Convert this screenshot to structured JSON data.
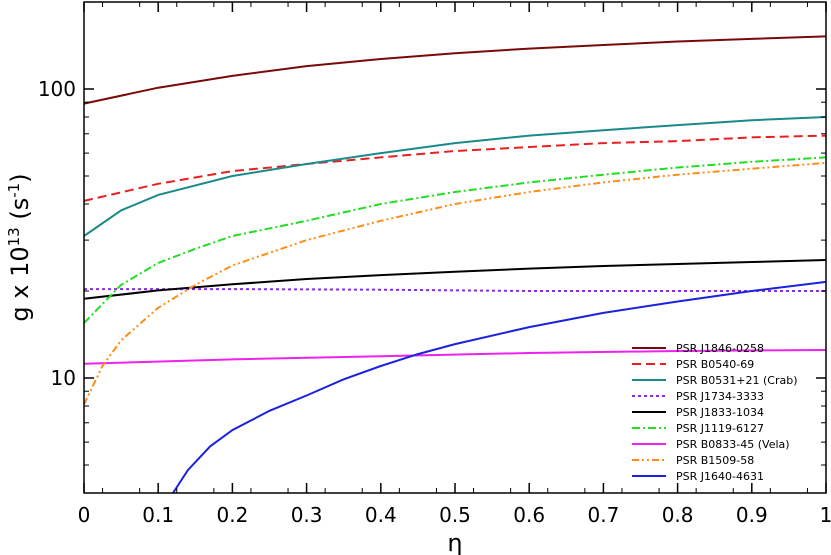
{
  "chart_data": {
    "type": "line",
    "xlabel": "η",
    "ylabel": {
      "base": "g x 10",
      "exponent": "13",
      "unit_open": " (s",
      "unit_exponent": "-1",
      "unit_close": ")"
    },
    "x_scale": "linear",
    "y_scale": "log",
    "xlim": [
      0,
      1
    ],
    "ylim": [
      4,
      200
    ],
    "x_ticks": [
      0,
      0.1,
      0.2,
      0.3,
      0.4,
      0.5,
      0.6,
      0.7,
      0.8,
      0.9,
      1
    ],
    "x_tick_labels": [
      "0",
      "0.1",
      "0.2",
      "0.3",
      "0.4",
      "0.5",
      "0.6",
      "0.7",
      "0.8",
      "0.9",
      "1"
    ],
    "y_major_ticks": [
      10,
      100
    ],
    "y_tick_labels": [
      "10",
      "100"
    ],
    "grid": false,
    "legend_position": "bottom-right",
    "series": [
      {
        "name": "PSR J1846-0258",
        "color": "#7a0a0a",
        "dash": "solid",
        "x": [
          0,
          0.1,
          0.2,
          0.3,
          0.4,
          0.5,
          0.6,
          0.7,
          0.8,
          0.9,
          1
        ],
        "y": [
          89,
          101,
          111,
          120,
          127,
          133,
          138,
          142,
          146,
          149,
          152
        ]
      },
      {
        "name": "PSR B0540-69",
        "color": "#e82020",
        "dash": "dashed",
        "x": [
          0,
          0.1,
          0.2,
          0.3,
          0.4,
          0.5,
          0.6,
          0.7,
          0.8,
          0.9,
          1
        ],
        "y": [
          41,
          47,
          52,
          55,
          58,
          61,
          63,
          65,
          66,
          68,
          69
        ]
      },
      {
        "name": "PSR B0531+21 (Crab)",
        "color": "#1a8a8a",
        "dash": "solid",
        "x": [
          0,
          0.05,
          0.1,
          0.2,
          0.3,
          0.4,
          0.5,
          0.6,
          0.7,
          0.8,
          0.9,
          1
        ],
        "y": [
          31,
          38,
          43,
          50,
          55,
          60,
          65,
          69,
          72,
          75,
          78,
          80
        ]
      },
      {
        "name": "PSR J1734-3333",
        "color": "#8a2be2",
        "dash": "dotted",
        "x": [
          0,
          0.2,
          0.4,
          0.6,
          0.8,
          1
        ],
        "y": [
          20.3,
          20.3,
          20.2,
          20.0,
          20.0,
          20.0
        ]
      },
      {
        "name": "PSR J1833-1034",
        "color": "#000000",
        "dash": "solid",
        "x": [
          0,
          0.1,
          0.2,
          0.3,
          0.4,
          0.5,
          0.6,
          0.7,
          0.8,
          0.9,
          1
        ],
        "y": [
          18.8,
          20.1,
          21.1,
          22.0,
          22.7,
          23.3,
          23.9,
          24.4,
          24.8,
          25.2,
          25.6
        ]
      },
      {
        "name": "PSR J1119-6127",
        "color": "#22dd22",
        "dash": "dashdot",
        "x": [
          0,
          0.05,
          0.1,
          0.15,
          0.2,
          0.3,
          0.4,
          0.5,
          0.6,
          0.7,
          0.8,
          0.9,
          1
        ],
        "y": [
          15.5,
          21,
          25,
          28,
          31,
          35,
          40,
          44,
          47.5,
          50.5,
          53.5,
          56,
          58
        ]
      },
      {
        "name": "PSR B0833-45 (Vela)",
        "color": "#ee22ee",
        "dash": "solid",
        "x": [
          0,
          0.2,
          0.4,
          0.6,
          0.8,
          1
        ],
        "y": [
          11.2,
          11.6,
          11.9,
          12.2,
          12.4,
          12.5
        ]
      },
      {
        "name": "PSR B1509-58",
        "color": "#ff8c1a",
        "dash": "dashdotdot",
        "x": [
          0,
          0.025,
          0.05,
          0.1,
          0.15,
          0.2,
          0.3,
          0.4,
          0.5,
          0.6,
          0.7,
          0.8,
          0.9,
          1
        ],
        "y": [
          8.1,
          11,
          13.5,
          17.5,
          21,
          24.5,
          30,
          35,
          40,
          44,
          47.5,
          50.5,
          53,
          55.5
        ]
      },
      {
        "name": "PSR J1640-4631",
        "color": "#1a22dd",
        "dash": "solid",
        "x": [
          0.12,
          0.14,
          0.17,
          0.2,
          0.25,
          0.3,
          0.35,
          0.4,
          0.45,
          0.5,
          0.6,
          0.7,
          0.8,
          0.9,
          1
        ],
        "y": [
          4.0,
          4.8,
          5.8,
          6.6,
          7.7,
          8.7,
          9.9,
          11.0,
          12.1,
          13.1,
          15.0,
          16.8,
          18.4,
          20.0,
          21.5
        ]
      }
    ]
  }
}
